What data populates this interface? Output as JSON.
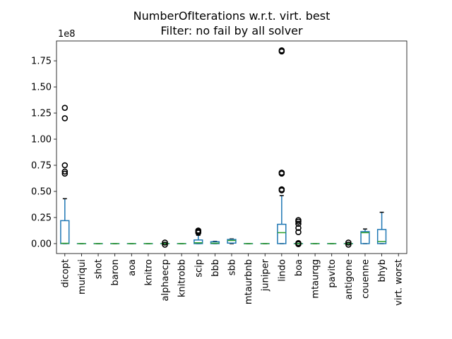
{
  "chart_data": {
    "type": "box",
    "title": "NumberOfIterations w.r.t. virt. best",
    "subtitle": "Filter: no fail by all solver",
    "xlabel": "",
    "ylabel": "",
    "y_multiplier": "1e8",
    "ylim": [
      -9500000,
      194000000
    ],
    "yticks": [
      0,
      25000000,
      50000000,
      75000000,
      100000000,
      125000000,
      150000000,
      175000000
    ],
    "ytick_labels": [
      "0.00",
      "0.25",
      "0.50",
      "0.75",
      "1.00",
      "1.25",
      "1.50",
      "1.75"
    ],
    "grid": false,
    "legend": "none",
    "colors": {
      "box": "#1f77b4",
      "median": "#2ca02c",
      "whisker_cap": "#000000",
      "flier": "#000000"
    },
    "categories": [
      "dicopt",
      "muriqui",
      "shot",
      "baron",
      "aoa",
      "knitro",
      "alphaecp",
      "knitrobb",
      "scip",
      "bbb",
      "sbb",
      "mtaurbnb",
      "juniper",
      "lindo",
      "boa",
      "mtaurqg",
      "pavito",
      "antigone",
      "couenne",
      "bhyb",
      "virt. worst"
    ],
    "boxes": [
      {
        "name": "dicopt",
        "q1": 0,
        "median": 300000,
        "q3": 22000000,
        "whislo": 0,
        "whishi": 43000000,
        "fliers": [
          67000000,
          69000000,
          75000000,
          120000000,
          130000000
        ]
      },
      {
        "name": "muriqui",
        "q1": 0,
        "median": 0,
        "q3": 0,
        "whislo": 0,
        "whishi": 0,
        "fliers": []
      },
      {
        "name": "shot",
        "q1": 0,
        "median": 0,
        "q3": 0,
        "whislo": 0,
        "whishi": 0,
        "fliers": []
      },
      {
        "name": "baron",
        "q1": 0,
        "median": 0,
        "q3": 0,
        "whislo": 0,
        "whishi": 0,
        "fliers": []
      },
      {
        "name": "aoa",
        "q1": 0,
        "median": 0,
        "q3": 0,
        "whislo": 0,
        "whishi": 0,
        "fliers": []
      },
      {
        "name": "knitro",
        "q1": 0,
        "median": 0,
        "q3": 0,
        "whislo": 0,
        "whishi": 0,
        "fliers": []
      },
      {
        "name": "alphaecp",
        "q1": 0,
        "median": 0,
        "q3": 0,
        "whislo": 0,
        "whishi": 0,
        "fliers": [
          -1000000,
          1000000
        ]
      },
      {
        "name": "knitrobb",
        "q1": 0,
        "median": 0,
        "q3": 0,
        "whislo": 0,
        "whishi": 0,
        "fliers": []
      },
      {
        "name": "scip",
        "q1": 0,
        "median": 800000,
        "q3": 3500000,
        "whislo": 0,
        "whishi": 8000000,
        "fliers": [
          10500000,
          11500000,
          12500000
        ]
      },
      {
        "name": "bbb",
        "q1": 0,
        "median": 400000,
        "q3": 1800000,
        "whislo": 0,
        "whishi": 2200000,
        "fliers": []
      },
      {
        "name": "sbb",
        "q1": 500000,
        "median": 3000000,
        "q3": 4000000,
        "whislo": 0,
        "whishi": 4500000,
        "fliers": []
      },
      {
        "name": "mtaurbnb",
        "q1": 0,
        "median": 0,
        "q3": 0,
        "whislo": 0,
        "whishi": 0,
        "fliers": []
      },
      {
        "name": "juniper",
        "q1": 0,
        "median": 0,
        "q3": 0,
        "whislo": 0,
        "whishi": 0,
        "fliers": []
      },
      {
        "name": "lindo",
        "q1": 0,
        "median": 10500000,
        "q3": 18500000,
        "whislo": 0,
        "whishi": 46000000,
        "fliers": [
          51000000,
          52000000,
          67000000,
          68000000,
          184000000,
          185000000
        ]
      },
      {
        "name": "boa",
        "q1": 0,
        "median": 0,
        "q3": 0,
        "whislo": 0,
        "whishi": 0,
        "fliers": [
          -500000,
          500000,
          11000000,
          15000000,
          19000000,
          21000000,
          22500000
        ]
      },
      {
        "name": "mtaurqg",
        "q1": 0,
        "median": 0,
        "q3": 0,
        "whislo": 0,
        "whishi": 0,
        "fliers": []
      },
      {
        "name": "pavito",
        "q1": 0,
        "median": 0,
        "q3": 0,
        "whislo": 0,
        "whishi": 0,
        "fliers": []
      },
      {
        "name": "antigone",
        "q1": 0,
        "median": 0,
        "q3": 0,
        "whislo": 0,
        "whishi": 0,
        "fliers": [
          -1000000,
          1000000
        ]
      },
      {
        "name": "couenne",
        "q1": 0,
        "median": 10500000,
        "q3": 11500000,
        "whislo": 0,
        "whishi": 14000000,
        "fliers": []
      },
      {
        "name": "bhyb",
        "q1": 0,
        "median": 2000000,
        "q3": 13500000,
        "whislo": 0,
        "whishi": 30000000,
        "fliers": []
      },
      {
        "name": "virt. worst",
        "q1": 0,
        "median": 0,
        "q3": 0,
        "whislo": 0,
        "whishi": 0,
        "fliers": [],
        "empty": true
      }
    ]
  }
}
